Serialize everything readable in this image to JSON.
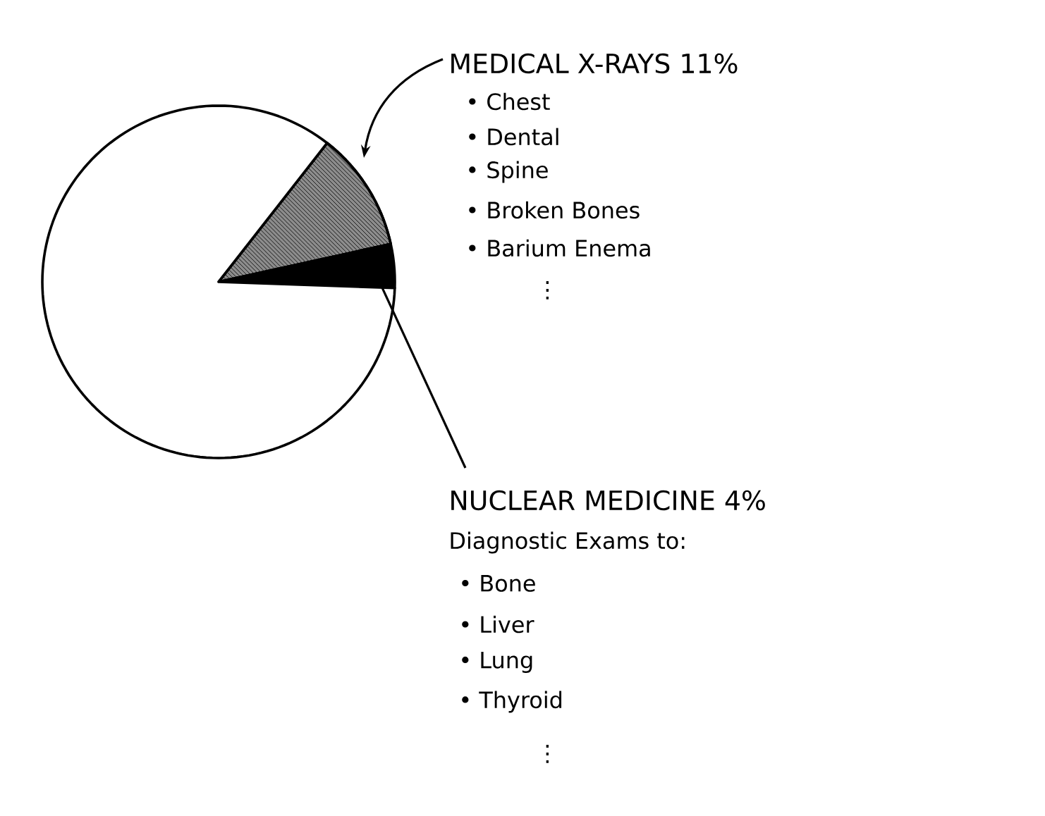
{
  "chart_data": {
    "type": "pie",
    "categories": [
      "MEDICAL X-RAYS",
      "NUCLEAR MEDICINE",
      null
    ],
    "values": [
      11,
      4,
      85
    ],
    "value_labels": [
      "11%",
      "4%",
      null
    ],
    "colors": [
      "#8c8c8c",
      "#000000",
      "#ffffff"
    ],
    "annotations": [
      "• Chest",
      "• Dental",
      "• Spine",
      "• Broken Bones",
      "• Barium Enema",
      "⋮",
      "Diagnostic Exams to:",
      "• Bone",
      "• Liver",
      "• Lung",
      "• Thyroid",
      "⋮"
    ]
  }
}
